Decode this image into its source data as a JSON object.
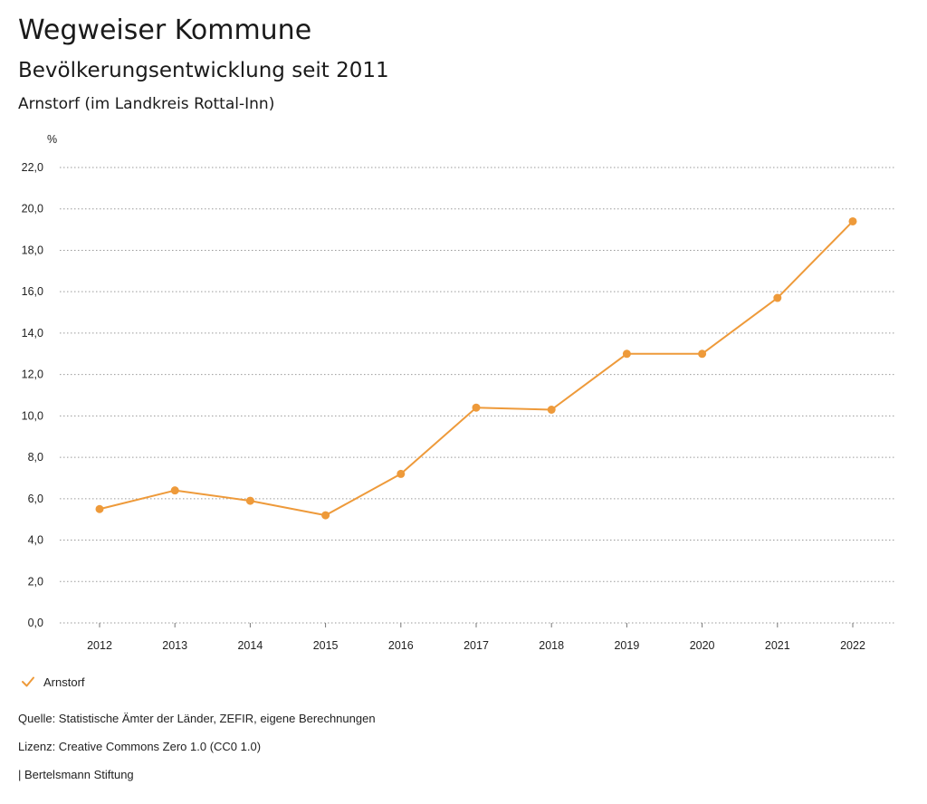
{
  "header": {
    "title": "Wegweiser Kommune",
    "subtitle": "Bevölkerungsentwicklung seit 2011",
    "region": "Arnstorf (im Landkreis Rottal-Inn)"
  },
  "chart_data": {
    "type": "line",
    "unit_label": "%",
    "x": [
      "2012",
      "2013",
      "2014",
      "2015",
      "2016",
      "2017",
      "2018",
      "2019",
      "2020",
      "2021",
      "2022"
    ],
    "series": [
      {
        "name": "Arnstorf",
        "color": "#ee9a3a",
        "values": [
          5.5,
          6.4,
          5.9,
          5.2,
          7.2,
          10.4,
          10.3,
          13.0,
          13.0,
          15.7,
          19.4
        ]
      }
    ],
    "ylim": [
      0,
      22
    ],
    "yticks": [
      "0,0",
      "2,0",
      "4,0",
      "6,0",
      "8,0",
      "10,0",
      "12,0",
      "14,0",
      "16,0",
      "18,0",
      "20,0",
      "22,0"
    ],
    "grid": true,
    "legend": "bottom-left"
  },
  "legend": {
    "label": "Arnstorf",
    "icon": "check-icon"
  },
  "footer": {
    "source": "Quelle: Statistische Ämter der Länder, ZEFIR, eigene Berechnungen",
    "license": "Lizenz: Creative Commons Zero 1.0 (CC0 1.0)",
    "publisher": "| Bertelsmann Stiftung"
  }
}
